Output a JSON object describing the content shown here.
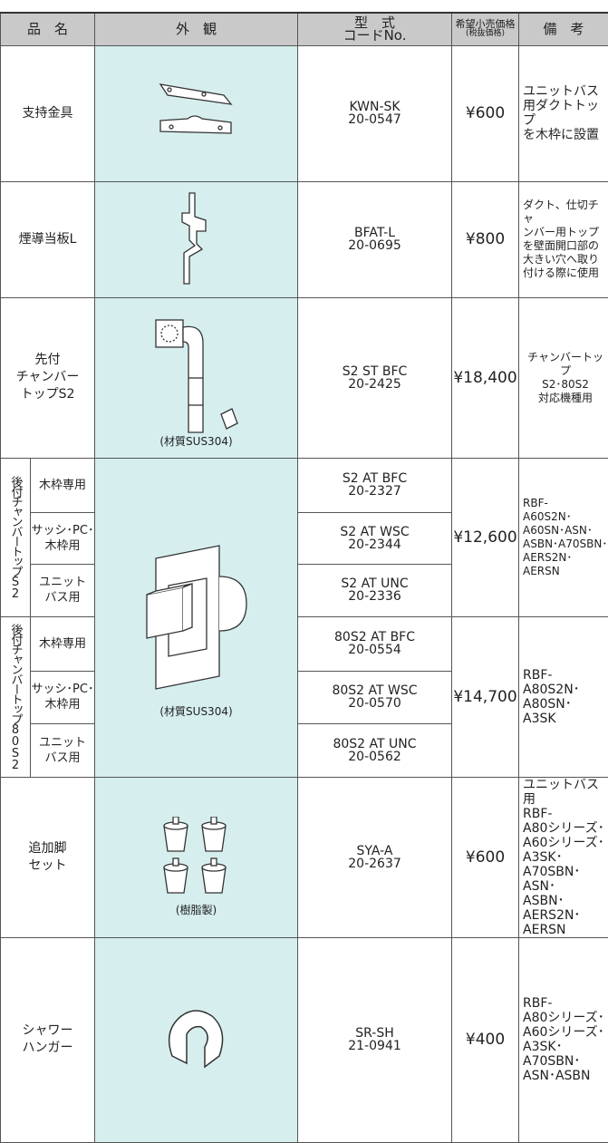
{
  "header": {
    "name": "品　名",
    "appearance": "外　観",
    "model": [
      "型　式",
      "コードNo."
    ],
    "price": [
      "希望小売価格",
      "(税抜価格)"
    ],
    "notes": "備　考"
  },
  "rows": [
    {
      "name": [
        "支持金具"
      ],
      "model": [
        "KWN-SK",
        "20-0547"
      ],
      "price": "¥600",
      "notes": [
        "ユニットバス",
        "用ダクトトップ",
        "を木枠に設置"
      ]
    },
    {
      "name": [
        "煙導当板L"
      ],
      "model": [
        "BFAT-L",
        "20-0695"
      ],
      "price": "¥800",
      "notes": [
        "ダクト、仕切チャ",
        "ンバー用トップ",
        "を壁面開口部の",
        "大きい穴へ取り",
        "付ける際に使用"
      ]
    },
    {
      "name": [
        "先付",
        "チャンバー",
        "トップS2"
      ],
      "material": "(材質SUS304)",
      "model": [
        "S2 ST BFC",
        "20-2425"
      ],
      "price": "¥18,400",
      "notes": [
        "チャンバートップ",
        "S2･80S2",
        "対応機種用"
      ]
    }
  ],
  "groups": [
    {
      "label": "後付チャンバートップS2",
      "items": [
        {
          "name": [
            "木枠専用"
          ],
          "model": [
            "S2 AT BFC",
            "20-2327"
          ]
        },
        {
          "name": [
            "サッシ･PC･",
            "木枠用"
          ],
          "model": [
            "S2 AT WSC",
            "20-2344"
          ]
        },
        {
          "name": [
            "ユニット",
            "バス用"
          ],
          "model": [
            "S2 AT UNC",
            "20-2336"
          ]
        }
      ],
      "price": "¥12,600",
      "notes": [
        "RBF-",
        "A60S2N･",
        "A60SN･ASN･",
        "ASBN･A70SBN･",
        "AERS2N･AERSN"
      ]
    },
    {
      "label": "後付チャンバートップ80S2",
      "items": [
        {
          "name": [
            "木枠専用"
          ],
          "model": [
            "80S2 AT BFC",
            "20-0554"
          ]
        },
        {
          "name": [
            "サッシ･PC･",
            "木枠用"
          ],
          "model": [
            "80S2 AT WSC",
            "20-0570"
          ]
        },
        {
          "name": [
            "ユニット",
            "バス用"
          ],
          "model": [
            "80S2 AT UNC",
            "20-0562"
          ]
        }
      ],
      "price": "¥14,700",
      "notes": [
        "RBF-",
        "A80S2N･",
        "A80SN･",
        "A3SK"
      ]
    }
  ],
  "group_material": "(材質SUS304)",
  "rows_after": [
    {
      "name": [
        "追加脚",
        "セット"
      ],
      "material": "(樹脂製)",
      "model": [
        "SYA-A",
        "20-2637"
      ],
      "price": "¥600",
      "notes": [
        "ユニットバス用",
        "RBF-",
        "A80シリーズ･",
        "A60シリーズ･",
        "A3SK･",
        "A70SBN･ASN･",
        "ASBN･AERS2N･",
        "AERSN"
      ]
    },
    {
      "name": [
        "シャワー",
        "ハンガー"
      ],
      "model": [
        "SR-SH",
        "21-0941"
      ],
      "price": "¥400",
      "notes": [
        "RBF-",
        "A80シリーズ･",
        "A60シリーズ･",
        "A3SK･A70SBN･",
        "ASN･ASBN"
      ]
    }
  ]
}
